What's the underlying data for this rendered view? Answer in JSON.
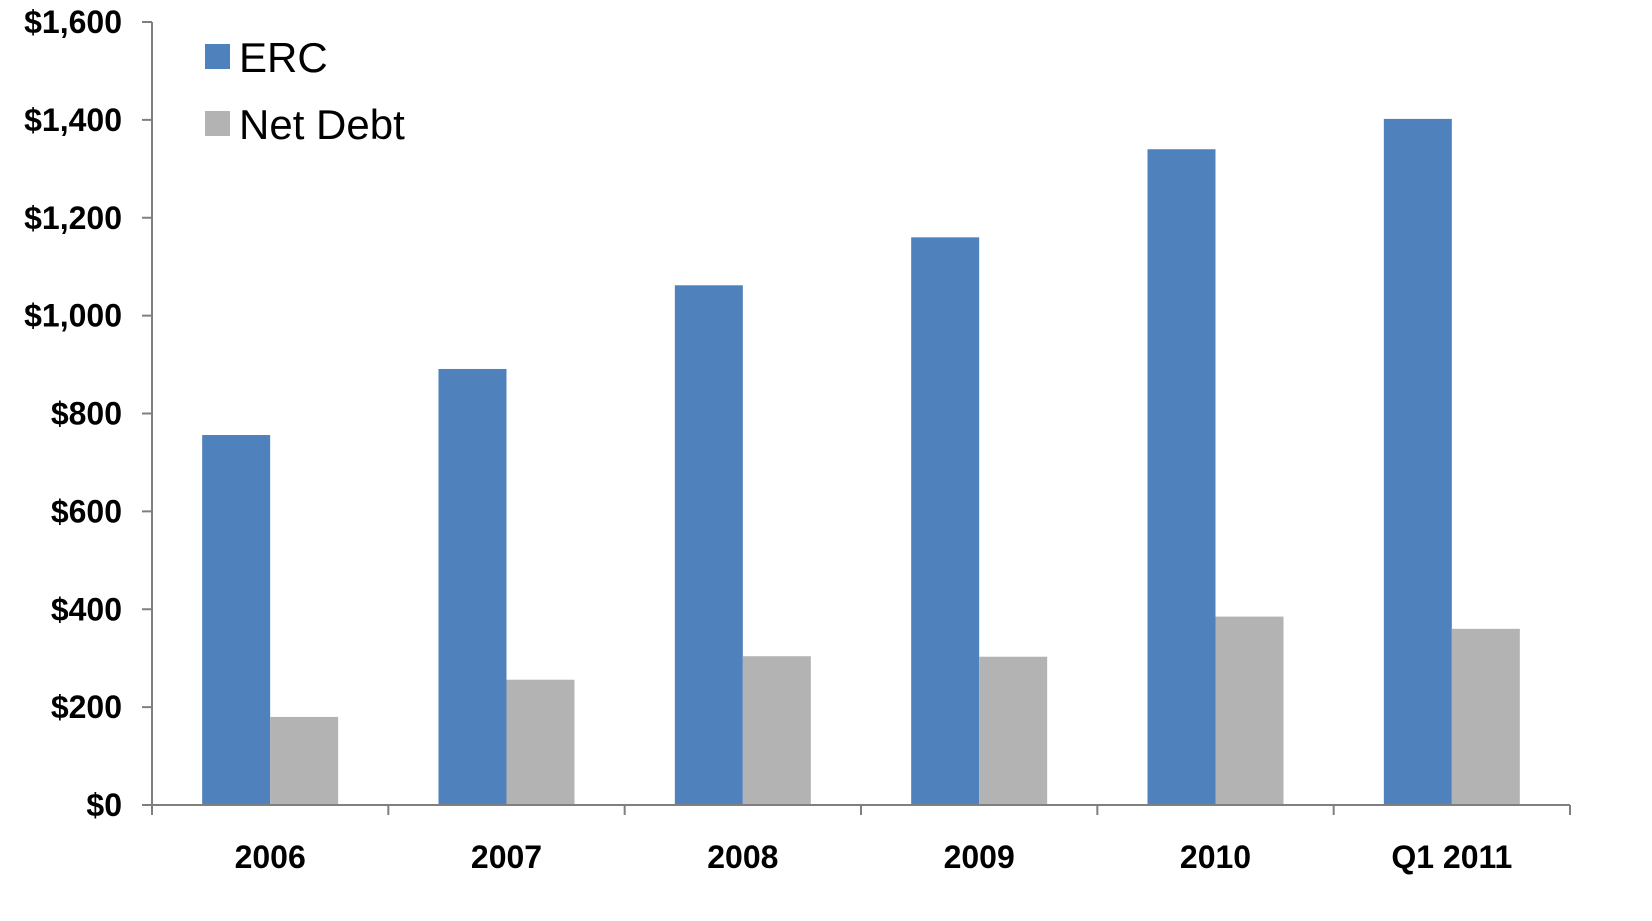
{
  "chart_data": {
    "type": "bar",
    "categories": [
      "2006",
      "2007",
      "2008",
      "2009",
      "2010",
      "Q1 2011"
    ],
    "series": [
      {
        "name": "ERC",
        "color": "#4f81bd",
        "values": [
          756,
          891,
          1062,
          1160,
          1340,
          1402
        ]
      },
      {
        "name": "Net Debt",
        "color": "#b3b3b3",
        "values": [
          180,
          256,
          304,
          303,
          385,
          360
        ]
      }
    ],
    "ylim": [
      0,
      1600
    ],
    "yticks": [
      0,
      200,
      400,
      600,
      800,
      1000,
      1200,
      1400,
      1600
    ],
    "ytick_labels": [
      "$0",
      "$200",
      "$400",
      "$600",
      "$800",
      "$1,000",
      "$1,200",
      "$1,400",
      "$1,600"
    ],
    "legend": "top-left",
    "grid": false
  }
}
